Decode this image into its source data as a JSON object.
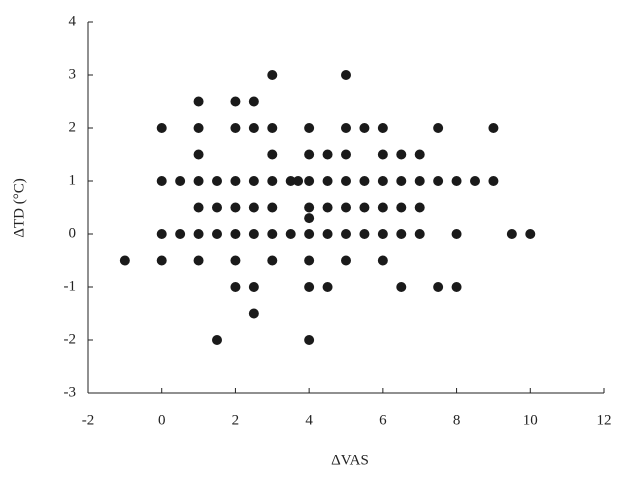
{
  "chart_data": {
    "type": "scatter",
    "x_label": "ΔVAS",
    "y_label": "ΔTD (°C)",
    "xlim": [
      -2,
      12
    ],
    "xticks": [
      -2,
      0,
      2,
      4,
      6,
      8,
      10,
      12
    ],
    "ylim": [
      -3,
      4
    ],
    "yticks": [
      -3,
      -2,
      -1,
      0,
      1,
      2,
      3,
      4
    ],
    "color": "#1a1a1a",
    "x": [
      3,
      5,
      1,
      2,
      2.5,
      0,
      1,
      2,
      2.5,
      3,
      4,
      5,
      5.5,
      6,
      7.5,
      9,
      1,
      3,
      4,
      4.5,
      5,
      6,
      6.5,
      7,
      0,
      0.5,
      1,
      1.5,
      2,
      2.5,
      3,
      3.5,
      3.7,
      4,
      4.5,
      5,
      5.5,
      6,
      6.5,
      7,
      7.5,
      8,
      8.5,
      9,
      1,
      1.5,
      2,
      2.5,
      3,
      4,
      4.5,
      5,
      5.5,
      6,
      6.5,
      7,
      4,
      0,
      0.5,
      1,
      1.5,
      2,
      2.5,
      3,
      3.5,
      4,
      4.5,
      5,
      5.5,
      6,
      6.5,
      7,
      8,
      9.5,
      10,
      -1,
      0,
      1,
      2,
      3,
      4,
      5,
      6,
      2,
      2.5,
      4,
      4.5,
      6.5,
      7.5,
      8,
      2.5,
      1.5,
      4
    ],
    "values": [
      3,
      3,
      2.5,
      2.5,
      2.5,
      2,
      2,
      2,
      2,
      2,
      2,
      2,
      2,
      2,
      2,
      2,
      1.5,
      1.5,
      1.5,
      1.5,
      1.5,
      1.5,
      1.5,
      1.5,
      1,
      1,
      1,
      1,
      1,
      1,
      1,
      1,
      1,
      1,
      1,
      1,
      1,
      1,
      1,
      1,
      1,
      1,
      1,
      1,
      0.5,
      0.5,
      0.5,
      0.5,
      0.5,
      0.5,
      0.5,
      0.5,
      0.5,
      0.5,
      0.5,
      0.5,
      0.3,
      0,
      0,
      0,
      0,
      0,
      0,
      0,
      0,
      0,
      0,
      0,
      0,
      0,
      0,
      0,
      0,
      0,
      0,
      -0.5,
      -0.5,
      -0.5,
      -0.5,
      -0.5,
      -0.5,
      -0.5,
      -0.5,
      -1,
      -1,
      -1,
      -1,
      -1,
      -1,
      -1,
      -1.5,
      -2,
      -2
    ]
  }
}
